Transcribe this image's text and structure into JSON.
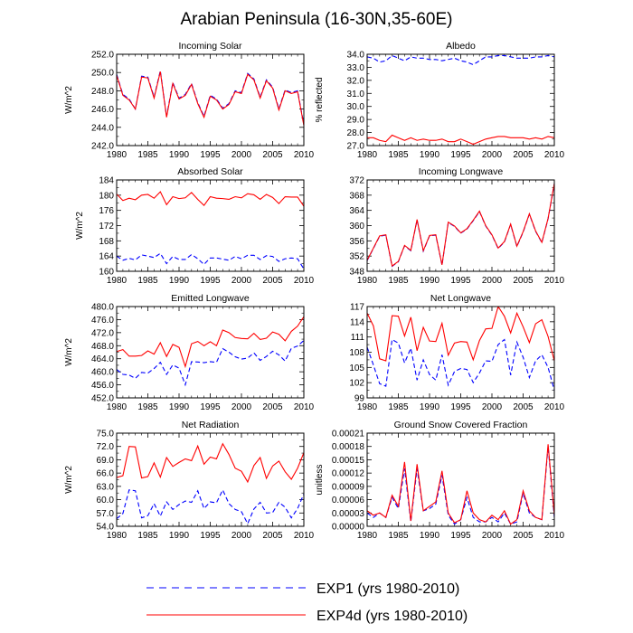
{
  "title": "Arabian Peninsula (16-30N,35-60E)",
  "legend": [
    {
      "label": "EXP1 (yrs 1980-2010)",
      "color": "#0000ff",
      "dash": "dashed"
    },
    {
      "label": "EXP4d (yrs 1980-2010)",
      "color": "#ff0000",
      "dash": "solid"
    }
  ],
  "chart_data": [
    {
      "type": "line",
      "title": "Incoming Solar",
      "ylabel": "W/m^2",
      "xlim": [
        1980,
        2010
      ],
      "ylim": [
        242,
        252
      ],
      "xticks": [
        1980,
        1985,
        1990,
        1995,
        2000,
        2005,
        2010
      ],
      "yticks": [
        "242.0",
        "244.0",
        "246.0",
        "248.0",
        "250.0",
        "252.0"
      ],
      "x": [
        1980,
        1981,
        1982,
        1983,
        1984,
        1985,
        1986,
        1987,
        1988,
        1989,
        1990,
        1991,
        1992,
        1993,
        1994,
        1995,
        1996,
        1997,
        1998,
        1999,
        2000,
        2001,
        2002,
        2003,
        2004,
        2005,
        2006,
        2007,
        2008,
        2009,
        2010
      ],
      "series": [
        {
          "name": "EXP1",
          "values": [
            249.8,
            247.6,
            247.1,
            246.0,
            249.6,
            249.5,
            247.3,
            250.2,
            245.2,
            248.9,
            247.2,
            247.6,
            248.8,
            246.7,
            245.2,
            247.5,
            247.1,
            246.1,
            246.6,
            248.0,
            247.8,
            249.9,
            249.3,
            247.3,
            249.2,
            248.4,
            246.0,
            248.1,
            247.8,
            248.0,
            244.3
          ]
        },
        {
          "name": "EXP4d",
          "values": [
            249.7,
            247.5,
            247.0,
            246.0,
            249.5,
            249.4,
            247.2,
            250.1,
            245.1,
            248.8,
            247.1,
            247.5,
            248.7,
            246.6,
            245.1,
            247.4,
            247.0,
            246.0,
            246.5,
            247.9,
            247.7,
            249.8,
            249.2,
            247.2,
            249.1,
            248.3,
            245.9,
            248.0,
            247.7,
            247.9,
            244.2
          ]
        }
      ]
    },
    {
      "type": "line",
      "title": "Albedo",
      "ylabel": "% reflected",
      "xlim": [
        1980,
        2010
      ],
      "ylim": [
        27,
        34
      ],
      "xticks": [
        1980,
        1985,
        1990,
        1995,
        2000,
        2005,
        2010
      ],
      "yticks": [
        "27.0",
        "28.0",
        "29.0",
        "30.0",
        "31.0",
        "32.0",
        "33.0",
        "34.0"
      ],
      "x": [
        1980,
        1981,
        1982,
        1983,
        1984,
        1985,
        1986,
        1987,
        1988,
        1989,
        1990,
        1991,
        1992,
        1993,
        1994,
        1995,
        1996,
        1997,
        1998,
        1999,
        2000,
        2001,
        2002,
        2003,
        2004,
        2005,
        2006,
        2007,
        2008,
        2009,
        2010
      ],
      "series": [
        {
          "name": "EXP1",
          "values": [
            33.8,
            33.7,
            33.4,
            33.5,
            33.9,
            33.7,
            33.5,
            33.8,
            33.7,
            33.7,
            33.6,
            33.6,
            33.5,
            33.6,
            33.7,
            33.5,
            33.4,
            33.2,
            33.5,
            33.8,
            33.8,
            33.9,
            33.9,
            33.8,
            33.7,
            33.7,
            33.7,
            33.8,
            33.8,
            33.9,
            33.8
          ]
        },
        {
          "name": "EXP4d",
          "values": [
            27.6,
            27.6,
            27.4,
            27.3,
            27.8,
            27.6,
            27.4,
            27.6,
            27.4,
            27.5,
            27.4,
            27.4,
            27.5,
            27.3,
            27.3,
            27.5,
            27.3,
            27.1,
            27.3,
            27.5,
            27.6,
            27.7,
            27.7,
            27.6,
            27.6,
            27.6,
            27.5,
            27.6,
            27.5,
            27.7,
            27.6
          ]
        }
      ]
    },
    {
      "type": "line",
      "title": "Absorbed Solar",
      "ylabel": "W/m^2",
      "xlim": [
        1980,
        2010
      ],
      "ylim": [
        160,
        184
      ],
      "xticks": [
        1980,
        1985,
        1990,
        1995,
        2000,
        2005,
        2010
      ],
      "yticks": [
        "160",
        "164",
        "168",
        "172",
        "176",
        "180",
        "184"
      ],
      "x": [
        1980,
        1981,
        1982,
        1983,
        1984,
        1985,
        1986,
        1987,
        1988,
        1989,
        1990,
        1991,
        1992,
        1993,
        1994,
        1995,
        1996,
        1997,
        1998,
        1999,
        2000,
        2001,
        2002,
        2003,
        2004,
        2005,
        2006,
        2007,
        2008,
        2009,
        2010
      ],
      "series": [
        {
          "name": "EXP1",
          "values": [
            164.0,
            162.9,
            163.4,
            163.0,
            164.3,
            164.0,
            163.6,
            164.7,
            162.0,
            163.9,
            163.1,
            163.1,
            164.4,
            163.3,
            161.8,
            163.5,
            163.5,
            163.2,
            162.9,
            163.9,
            163.3,
            164.2,
            164.2,
            163.1,
            164.1,
            163.9,
            162.6,
            163.3,
            163.5,
            163.3,
            160.6
          ]
        },
        {
          "name": "EXP4d",
          "values": [
            180.3,
            178.6,
            179.2,
            178.8,
            180.0,
            180.2,
            179.2,
            180.9,
            177.5,
            179.6,
            179.1,
            179.3,
            180.7,
            178.9,
            177.3,
            179.6,
            179.2,
            179.1,
            178.9,
            179.6,
            179.3,
            180.4,
            180.1,
            178.9,
            180.2,
            179.4,
            177.8,
            179.6,
            179.5,
            179.5,
            177.1
          ]
        }
      ]
    },
    {
      "type": "line",
      "title": "Incoming Longwave",
      "ylabel": "",
      "xlim": [
        1980,
        2010
      ],
      "ylim": [
        348,
        372
      ],
      "xticks": [
        1980,
        1985,
        1990,
        1995,
        2000,
        2005,
        2010
      ],
      "yticks": [
        "348",
        "352",
        "356",
        "360",
        "364",
        "368",
        "372"
      ],
      "x": [
        1980,
        1981,
        1982,
        1983,
        1984,
        1985,
        1986,
        1987,
        1988,
        1989,
        1990,
        1991,
        1992,
        1993,
        1994,
        1995,
        1996,
        1997,
        1998,
        1999,
        2000,
        2001,
        2002,
        2003,
        2004,
        2005,
        2006,
        2007,
        2008,
        2009,
        2010
      ],
      "series": [
        {
          "name": "EXP1",
          "values": [
            350.8,
            354.0,
            357.2,
            357.5,
            349.3,
            350.5,
            354.7,
            353.4,
            361.5,
            353.3,
            357.3,
            357.5,
            349.6,
            360.8,
            359.8,
            358.0,
            359.1,
            361.3,
            363.7,
            359.9,
            357.5,
            354.0,
            355.7,
            360.3,
            354.5,
            358.3,
            363.0,
            358.5,
            355.5,
            361.8,
            371.0
          ]
        },
        {
          "name": "EXP4d",
          "values": [
            350.9,
            354.1,
            357.3,
            357.6,
            349.4,
            350.6,
            354.8,
            353.5,
            361.6,
            353.4,
            357.4,
            357.6,
            349.7,
            360.9,
            359.9,
            358.1,
            359.2,
            361.4,
            363.8,
            360.0,
            357.6,
            354.1,
            355.8,
            360.4,
            354.6,
            358.4,
            363.1,
            358.6,
            355.6,
            361.9,
            371.1
          ]
        }
      ]
    },
    {
      "type": "line",
      "title": "Emitted Longwave",
      "ylabel": "W/m^2",
      "xlim": [
        1980,
        2010
      ],
      "ylim": [
        452,
        480
      ],
      "xticks": [
        1980,
        1985,
        1990,
        1995,
        2000,
        2005,
        2010
      ],
      "yticks": [
        "452.0",
        "456.0",
        "460.0",
        "464.0",
        "468.0",
        "472.0",
        "476.0",
        "480.0"
      ],
      "x": [
        1980,
        1981,
        1982,
        1983,
        1984,
        1985,
        1986,
        1987,
        1988,
        1989,
        1990,
        1991,
        1992,
        1993,
        1994,
        1995,
        1996,
        1997,
        1998,
        1999,
        2000,
        2001,
        2002,
        2003,
        2004,
        2005,
        2006,
        2007,
        2008,
        2009,
        2010
      ],
      "series": [
        {
          "name": "EXP1",
          "values": [
            460.7,
            459.2,
            459.0,
            458.0,
            459.8,
            459.6,
            461.0,
            462.9,
            459.2,
            462.1,
            461.1,
            456.0,
            463.1,
            463.0,
            462.8,
            463.1,
            462.9,
            467.1,
            466.0,
            464.6,
            463.9,
            464.2,
            465.8,
            463.5,
            464.7,
            466.3,
            465.2,
            463.3,
            467.2,
            467.9,
            469.6
          ]
        },
        {
          "name": "EXP4d",
          "values": [
            466.2,
            466.8,
            464.8,
            464.8,
            465.0,
            466.4,
            465.4,
            468.9,
            464.7,
            468.4,
            467.5,
            461.6,
            468.6,
            469.3,
            468.0,
            469.2,
            468.0,
            472.8,
            472.0,
            470.5,
            470.2,
            470.1,
            471.8,
            469.9,
            470.3,
            472.2,
            471.5,
            469.5,
            472.4,
            474.0,
            476.9
          ]
        }
      ]
    },
    {
      "type": "line",
      "title": "Net Longwave",
      "ylabel": "",
      "xlim": [
        1980,
        2010
      ],
      "ylim": [
        99,
        117
      ],
      "xticks": [
        1980,
        1985,
        1990,
        1995,
        2000,
        2005,
        2010
      ],
      "yticks": [
        "99",
        "102",
        "105",
        "108",
        "111",
        "114",
        "117"
      ],
      "x": [
        1980,
        1981,
        1982,
        1983,
        1984,
        1985,
        1986,
        1987,
        1988,
        1989,
        1990,
        1991,
        1992,
        1993,
        1994,
        1995,
        1996,
        1997,
        1998,
        1999,
        2000,
        2001,
        2002,
        2003,
        2004,
        2005,
        2006,
        2007,
        2008,
        2009,
        2010
      ],
      "series": [
        {
          "name": "EXP1",
          "values": [
            109.0,
            105.5,
            101.8,
            101.3,
            110.5,
            109.8,
            105.9,
            108.8,
            102.5,
            106.5,
            103.6,
            102.5,
            107.5,
            101.5,
            104.2,
            104.8,
            104.6,
            102.0,
            103.9,
            106.3,
            106.2,
            109.5,
            110.5,
            103.5,
            110.0,
            107.0,
            103.0,
            106.3,
            107.5,
            105.0,
            100.5
          ]
        },
        {
          "name": "EXP4d",
          "values": [
            115.7,
            113.2,
            106.7,
            106.3,
            115.2,
            115.1,
            111.2,
            114.9,
            108.3,
            112.9,
            110.2,
            110.1,
            113.7,
            107.4,
            109.8,
            110.1,
            110.0,
            106.5,
            110.3,
            112.6,
            112.7,
            117.0,
            115.1,
            111.8,
            115.7,
            113.0,
            109.9,
            113.6,
            114.4,
            111.1,
            106.3
          ]
        }
      ]
    },
    {
      "type": "line",
      "title": "Net Radiation",
      "ylabel": "W/m^2",
      "xlim": [
        1980,
        2010
      ],
      "ylim": [
        54,
        75
      ],
      "xticks": [
        1980,
        1985,
        1990,
        1995,
        2000,
        2005,
        2010
      ],
      "yticks": [
        "54.0",
        "57.0",
        "60.0",
        "63.0",
        "66.0",
        "69.0",
        "72.0",
        "75.0"
      ],
      "x": [
        1980,
        1981,
        1982,
        1983,
        1984,
        1985,
        1986,
        1987,
        1988,
        1989,
        1990,
        1991,
        1992,
        1993,
        1994,
        1995,
        1996,
        1997,
        1998,
        1999,
        2000,
        2001,
        2002,
        2003,
        2004,
        2005,
        2006,
        2007,
        2008,
        2009,
        2010
      ],
      "series": [
        {
          "name": "EXP1",
          "values": [
            55.7,
            56.9,
            62.2,
            62.0,
            55.9,
            56.4,
            59.1,
            56.3,
            59.5,
            57.8,
            58.9,
            59.7,
            59.4,
            62.0,
            58.0,
            59.5,
            59.3,
            62.2,
            59.1,
            57.8,
            57.3,
            54.6,
            57.9,
            59.4,
            57.0,
            57.1,
            59.4,
            58.3,
            55.9,
            58.0,
            61.3
          ]
        },
        {
          "name": "EXP4d",
          "values": [
            65.0,
            65.4,
            72.0,
            71.9,
            64.9,
            65.2,
            68.3,
            65.1,
            69.5,
            67.5,
            68.4,
            69.2,
            68.8,
            72.1,
            68.0,
            69.6,
            69.2,
            72.6,
            70.2,
            67.1,
            66.4,
            64.0,
            67.7,
            69.5,
            64.8,
            67.6,
            68.7,
            66.3,
            64.6,
            67.1,
            70.6
          ]
        }
      ]
    },
    {
      "type": "line",
      "title": "Ground Snow Covered Fraction",
      "ylabel": "unitless",
      "xlim": [
        1980,
        2010
      ],
      "ylim": [
        0,
        0.00021
      ],
      "xticks": [
        1980,
        1985,
        1990,
        1995,
        2000,
        2005,
        2010
      ],
      "yticks": [
        "0.00000",
        "0.00003",
        "0.00006",
        "0.00009",
        "0.00012",
        "0.00015",
        "0.00018",
        "0.00021"
      ],
      "x": [
        1980,
        1981,
        1982,
        1983,
        1984,
        1985,
        1986,
        1987,
        1988,
        1989,
        1990,
        1991,
        1992,
        1993,
        1994,
        1995,
        1996,
        1997,
        1998,
        1999,
        2000,
        2001,
        2002,
        2003,
        2004,
        2005,
        2006,
        2007,
        2008,
        2009,
        2010
      ],
      "series": [
        {
          "name": "EXP1",
          "values": [
            3e-05,
            2e-05,
            3e-05,
            2e-05,
            6.5e-05,
            4e-05,
            0.00013,
            1e-05,
            0.00013,
            3.5e-05,
            4e-05,
            5e-05,
            0.000115,
            2.5e-05,
            5e-06,
            1.5e-05,
            6.5e-05,
            2e-05,
            1e-05,
            1e-05,
            2e-05,
            1e-05,
            3e-05,
            5e-06,
            1e-05,
            7.5e-05,
            3e-05,
            2e-05,
            1.5e-05,
            0.00018,
            2e-05
          ]
        },
        {
          "name": "EXP4d",
          "values": [
            3.5e-05,
            2.5e-05,
            3e-05,
            2e-05,
            7e-05,
            4.5e-05,
            0.000145,
            1.2e-05,
            0.00014,
            3.5e-05,
            4.5e-05,
            5.5e-05,
            0.000125,
            3e-05,
            8e-06,
            1.5e-05,
            8e-05,
            3e-05,
            1.5e-05,
            1e-05,
            2.5e-05,
            1.5e-05,
            3.5e-05,
            5e-06,
            1.5e-05,
            8e-05,
            3.5e-05,
            2e-05,
            1.5e-05,
            0.000185,
            2.5e-05
          ]
        }
      ]
    }
  ]
}
